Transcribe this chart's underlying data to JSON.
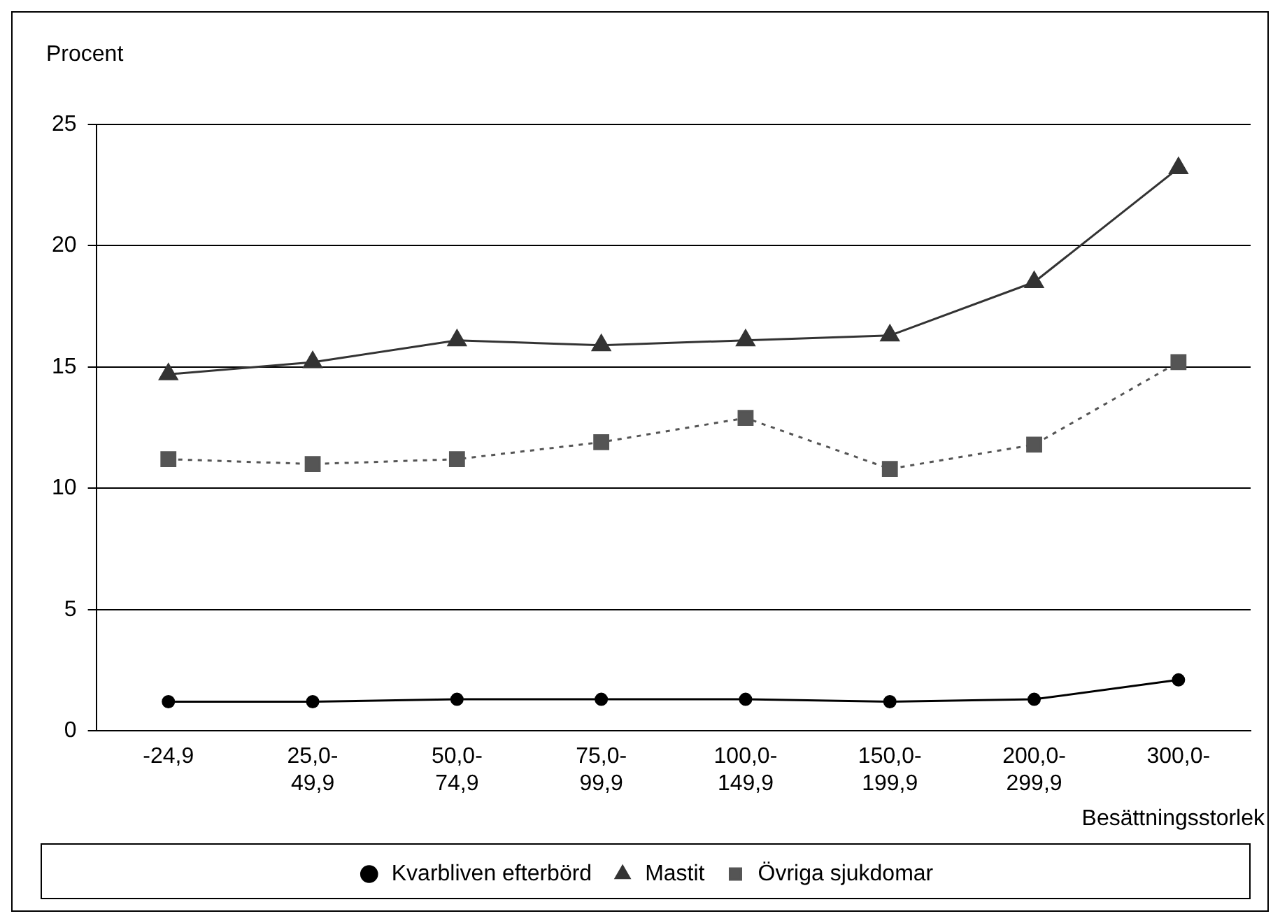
{
  "chart_data": {
    "type": "line",
    "xlabel": "Besättningsstorlek",
    "ylabel": "Procent",
    "categories": [
      "-24,9",
      "25,0-49,9",
      "50,0-74,9",
      "75,0-99,9",
      "100,0-149,9",
      "150,0-199,9",
      "200,0-299,9",
      "300,0-"
    ],
    "series": [
      {
        "name": "Kvarbliven efterbörd",
        "color": "#000000",
        "marker": "circle",
        "line_style": "solid",
        "values": [
          1.2,
          1.2,
          1.3,
          1.3,
          1.3,
          1.2,
          1.3,
          2.1
        ]
      },
      {
        "name": "Mastit",
        "color": "#333333",
        "marker": "triangle",
        "line_style": "solid",
        "values": [
          14.7,
          15.2,
          16.1,
          15.9,
          16.1,
          16.3,
          18.5,
          23.2
        ]
      },
      {
        "name": "Övriga sjukdomar",
        "color": "#555555",
        "marker": "square",
        "line_style": "dotted",
        "values": [
          11.2,
          11.0,
          11.2,
          11.9,
          12.9,
          10.8,
          11.8,
          15.2
        ]
      }
    ],
    "ylim": [
      0,
      25
    ],
    "yticks": [
      0,
      5,
      10,
      15,
      20,
      25
    ],
    "grid": "y",
    "legend": "bottom"
  }
}
